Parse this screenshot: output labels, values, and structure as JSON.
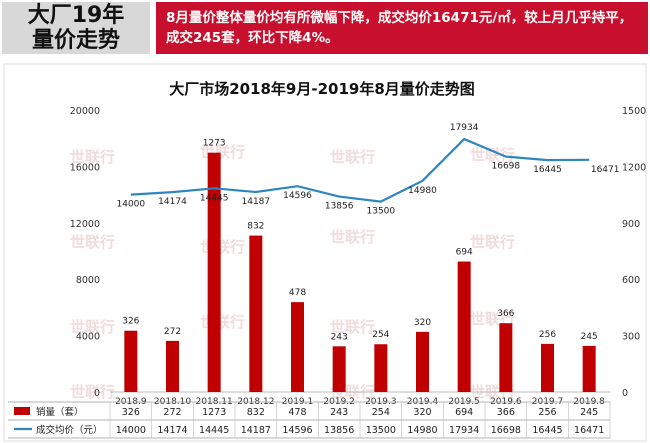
{
  "header": {
    "title": "大厂19年\n量价走势",
    "summary": "8月量价整体量价均有所微幅下降，成交均价16471元/㎡，较上月几乎持平，成交245套，环比下降4%。"
  },
  "watermark": "世联行",
  "chart_data": {
    "type": "bar",
    "title": "大厂市场2018年9月-2019年8月量价走势图",
    "categories": [
      "2018.9",
      "2018.10",
      "2018.11",
      "2018.12",
      "2019.1",
      "2019.2",
      "2019.3",
      "2019.4",
      "2019.5",
      "2019.6",
      "2019.7",
      "2019.8"
    ],
    "series": [
      {
        "name": "销量（套）",
        "type": "bar",
        "axis": "right",
        "color": "#c00000",
        "values": [
          326,
          272,
          1273,
          832,
          478,
          243,
          254,
          320,
          694,
          366,
          256,
          245
        ]
      },
      {
        "name": "成交均价（元）",
        "type": "line",
        "axis": "left",
        "color": "#2e86c1",
        "values": [
          14000,
          14174,
          14445,
          14187,
          14596,
          13856,
          13500,
          14980,
          17934,
          16698,
          16445,
          16471
        ]
      }
    ],
    "left_axis": {
      "min": 0,
      "max": 20000,
      "ticks": [
        0,
        4000,
        8000,
        12000,
        16000,
        20000
      ]
    },
    "right_axis": {
      "min": 0,
      "max": 1500,
      "ticks": [
        0,
        300,
        600,
        900,
        1200,
        1500
      ]
    },
    "legend": "bottom data table"
  }
}
